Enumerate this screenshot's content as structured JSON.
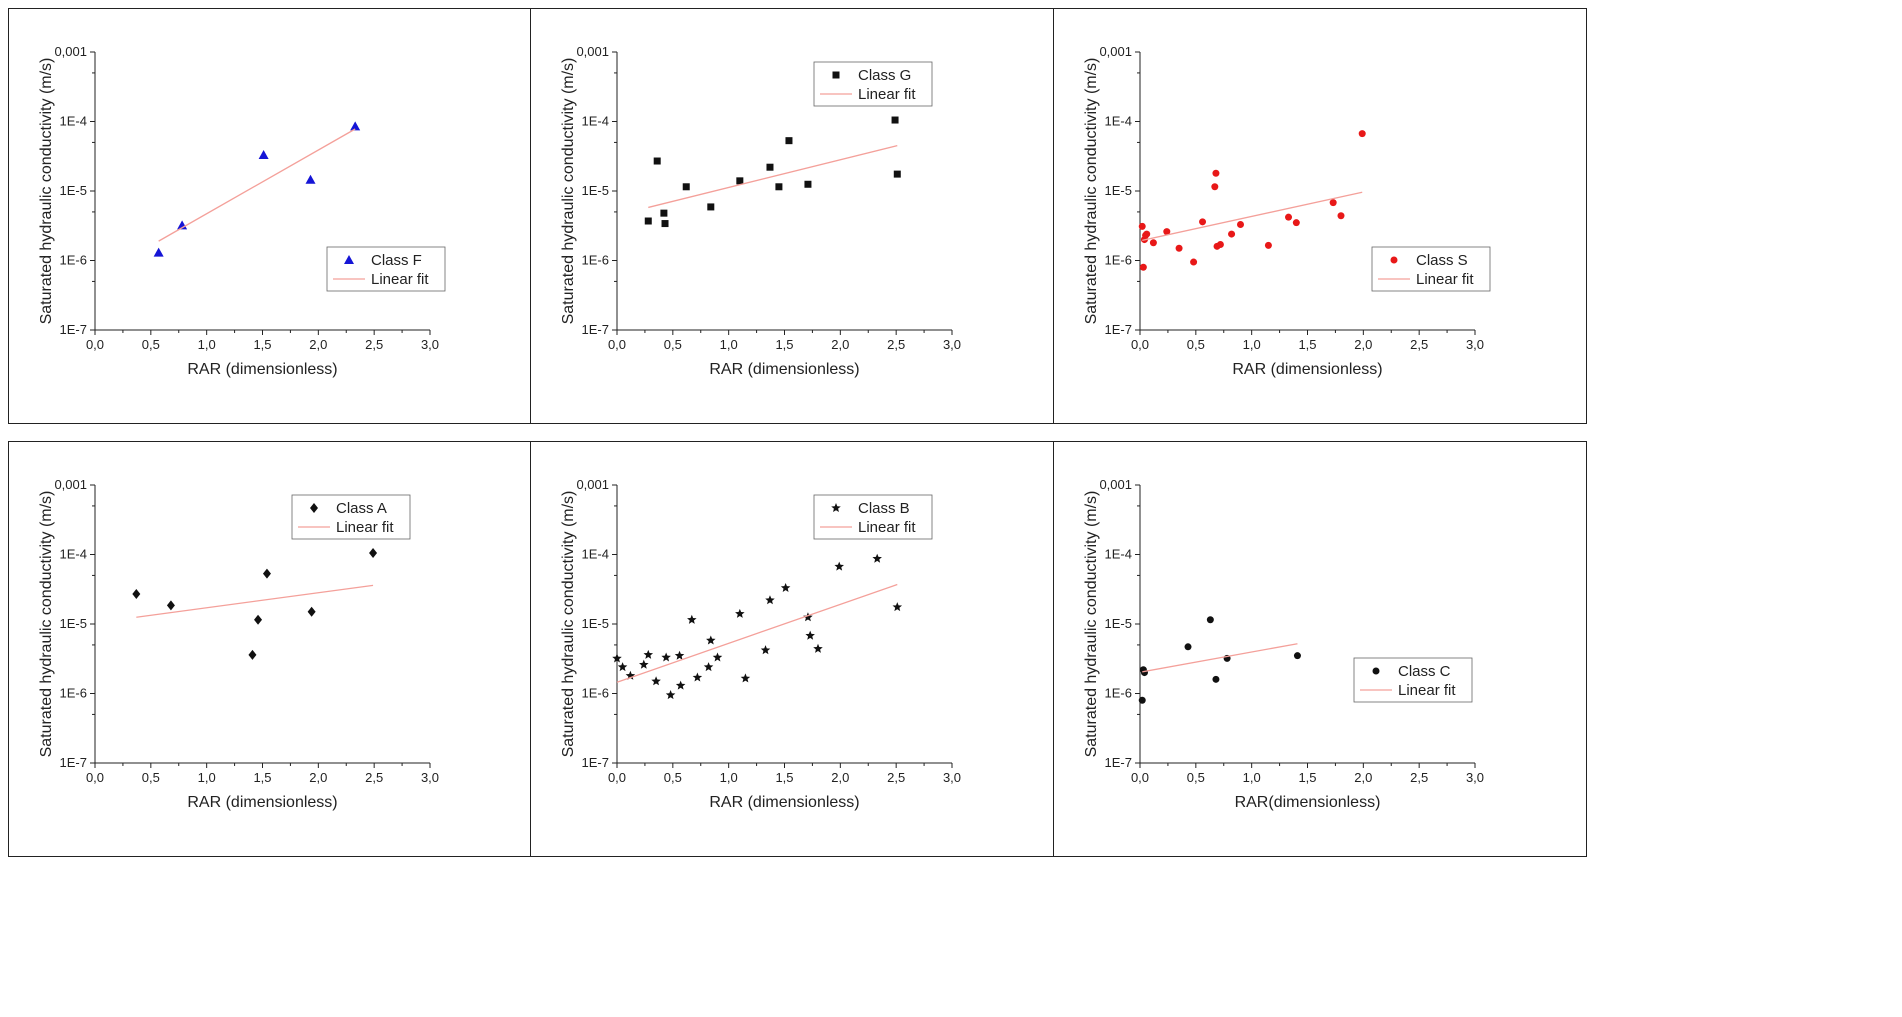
{
  "chart_data": [
    {
      "type": "scatter",
      "xlabel": "RAR (dimensionless)",
      "ylabel": "Saturated hydraulic conductivity (m/s)",
      "xlim": [
        0,
        3
      ],
      "ylim_log10": [
        -7,
        -3
      ],
      "x_ticks": [
        "0,0",
        "0,5",
        "1,0",
        "1,5",
        "2,0",
        "2,5",
        "3,0"
      ],
      "y_ticks": [
        "1E-7",
        "1E-6",
        "1E-5",
        "1E-4",
        "0,001"
      ],
      "legend_position": "bottom-right",
      "series": [
        {
          "name": "Class F",
          "marker": "triangle",
          "color": "#1515d6",
          "x": [
            0.57,
            0.78,
            1.51,
            1.93,
            2.33
          ],
          "y": [
            1.3e-06,
            3.2e-06,
            3.3e-05,
            1.45e-05,
            8.5e-05
          ]
        },
        {
          "name": "Linear fit",
          "kind": "line",
          "color": "#f4a09a",
          "x": [
            0.57,
            2.33
          ],
          "y": [
            1.9e-06,
            7.8e-05
          ]
        }
      ]
    },
    {
      "type": "scatter",
      "xlabel": "RAR (dimensionless)",
      "ylabel": "Saturated hydraulic conductivity (m/s)",
      "xlim": [
        0,
        3
      ],
      "ylim_log10": [
        -7,
        -3
      ],
      "x_ticks": [
        "0,0",
        "0,5",
        "1,0",
        "1,5",
        "2,0",
        "2,5",
        "3,0"
      ],
      "y_ticks": [
        "1E-7",
        "1E-6",
        "1E-5",
        "1E-4",
        "0,001"
      ],
      "legend_position": "top-right",
      "series": [
        {
          "name": "Class G",
          "marker": "square",
          "color": "#111111",
          "x": [
            0.28,
            0.36,
            0.42,
            0.43,
            0.62,
            0.84,
            1.1,
            1.37,
            1.45,
            1.54,
            1.71,
            2.49,
            2.51
          ],
          "y": [
            3.7e-06,
            2.7e-05,
            4.8e-06,
            3.4e-06,
            1.15e-05,
            5.9e-06,
            1.4e-05,
            2.2e-05,
            1.15e-05,
            5.3e-05,
            1.25e-05,
            0.000105,
            1.75e-05
          ]
        },
        {
          "name": "Linear fit",
          "kind": "line",
          "color": "#f4a09a",
          "x": [
            0.28,
            2.51
          ],
          "y": [
            5.8e-06,
            4.5e-05
          ]
        }
      ]
    },
    {
      "type": "scatter",
      "xlabel": "RAR (dimensionless)",
      "ylabel": "Saturated hydraulic conductivity (m/s)",
      "xlim": [
        0,
        3
      ],
      "ylim_log10": [
        -7,
        -3
      ],
      "x_ticks": [
        "0,0",
        "0,5",
        "1,0",
        "1,5",
        "2,0",
        "2,5",
        "3,0"
      ],
      "y_ticks": [
        "1E-7",
        "1E-6",
        "1E-5",
        "1E-4",
        "0,001"
      ],
      "legend_position": "bottom-right",
      "series": [
        {
          "name": "Class S",
          "marker": "circle",
          "color": "#e81818",
          "x": [
            0.02,
            0.03,
            0.04,
            0.05,
            0.06,
            0.12,
            0.24,
            0.35,
            0.48,
            0.56,
            0.67,
            0.68,
            0.69,
            0.72,
            0.82,
            0.9,
            1.15,
            1.33,
            1.4,
            1.73,
            1.8,
            1.99
          ],
          "y": [
            3.1e-06,
            8e-07,
            2e-06,
            2.3e-06,
            2.4e-06,
            1.8e-06,
            2.6e-06,
            1.5e-06,
            9.5e-07,
            3.6e-06,
            1.15e-05,
            1.8e-05,
            1.6e-06,
            1.7e-06,
            2.4e-06,
            3.3e-06,
            1.65e-06,
            4.2e-06,
            3.5e-06,
            6.8e-06,
            4.4e-06,
            6.7e-05
          ]
        },
        {
          "name": "Linear fit",
          "kind": "line",
          "color": "#f4a09a",
          "x": [
            0.02,
            1.99
          ],
          "y": [
            1.95e-06,
            9.6e-06
          ]
        }
      ]
    },
    {
      "type": "scatter",
      "xlabel": "RAR (dimensionless)",
      "ylabel": "Saturated hydraulic conductivity (m/s)",
      "xlim": [
        0,
        3
      ],
      "ylim_log10": [
        -7,
        -3
      ],
      "x_ticks": [
        "0,0",
        "0,5",
        "1,0",
        "1,5",
        "2,0",
        "2,5",
        "3,0"
      ],
      "y_ticks": [
        "1E-7",
        "1E-6",
        "1E-5",
        "1E-4",
        "0,001"
      ],
      "legend_position": "top-right",
      "series": [
        {
          "name": "Class A",
          "marker": "diamond",
          "color": "#111111",
          "x": [
            0.37,
            0.68,
            1.41,
            1.46,
            1.54,
            1.94,
            2.49
          ],
          "y": [
            2.7e-05,
            1.85e-05,
            3.6e-06,
            1.15e-05,
            5.3e-05,
            1.5e-05,
            0.000105
          ]
        },
        {
          "name": "Linear fit",
          "kind": "line",
          "color": "#f4a09a",
          "x": [
            0.37,
            2.49
          ],
          "y": [
            1.25e-05,
            3.6e-05
          ]
        }
      ]
    },
    {
      "type": "scatter",
      "xlabel": "RAR (dimensionless)",
      "ylabel": "Saturated hydraulic conductivity (m/s)",
      "xlim": [
        0,
        3
      ],
      "ylim_log10": [
        -7,
        -3
      ],
      "x_ticks": [
        "0,0",
        "0,5",
        "1,0",
        "1,5",
        "2,0",
        "2,5",
        "3,0"
      ],
      "y_ticks": [
        "1E-7",
        "1E-6",
        "1E-5",
        "1E-4",
        "0,001"
      ],
      "legend_position": "top-right",
      "series": [
        {
          "name": "Class B",
          "marker": "star",
          "color": "#111111",
          "x": [
            0.0,
            0.05,
            0.12,
            0.24,
            0.28,
            0.35,
            0.44,
            0.48,
            0.56,
            0.57,
            0.67,
            0.72,
            0.82,
            0.84,
            0.9,
            1.1,
            1.15,
            1.33,
            1.37,
            1.51,
            1.71,
            1.73,
            1.8,
            1.99,
            2.33,
            2.51
          ],
          "y": [
            3.2e-06,
            2.4e-06,
            1.8e-06,
            2.6e-06,
            3.6e-06,
            1.5e-06,
            3.3e-06,
            9.5e-07,
            3.5e-06,
            1.3e-06,
            1.15e-05,
            1.7e-06,
            2.4e-06,
            5.8e-06,
            3.3e-06,
            1.4e-05,
            1.65e-06,
            4.2e-06,
            2.2e-05,
            3.3e-05,
            1.25e-05,
            6.8e-06,
            4.4e-06,
            6.7e-05,
            8.7e-05,
            1.75e-05
          ]
        },
        {
          "name": "Linear fit",
          "kind": "line",
          "color": "#f4a09a",
          "x": [
            0.0,
            2.51
          ],
          "y": [
            1.45e-06,
            3.7e-05
          ]
        }
      ]
    },
    {
      "type": "scatter",
      "xlabel": "RAR(dimensionless)",
      "ylabel": "Saturated hydraulic conductivity (m/s)",
      "xlim": [
        0,
        3
      ],
      "ylim_log10": [
        -7,
        -3
      ],
      "x_ticks": [
        "0,0",
        "0,5",
        "1,0",
        "1,5",
        "2,0",
        "2,5",
        "3,0"
      ],
      "y_ticks": [
        "1E-7",
        "1E-6",
        "1E-5",
        "1E-4",
        "0,001"
      ],
      "legend_position": "right",
      "series": [
        {
          "name": "Class C",
          "marker": "circle",
          "color": "#111111",
          "x": [
            0.02,
            0.03,
            0.04,
            0.43,
            0.63,
            0.68,
            0.78,
            1.41
          ],
          "y": [
            8e-07,
            2.2e-06,
            2e-06,
            4.7e-06,
            1.15e-05,
            1.6e-06,
            3.2e-06,
            3.5e-06
          ]
        },
        {
          "name": "Linear fit",
          "kind": "line",
          "color": "#f4a09a",
          "x": [
            0.02,
            1.41
          ],
          "y": [
            2.05e-06,
            5.2e-06
          ]
        }
      ]
    }
  ]
}
